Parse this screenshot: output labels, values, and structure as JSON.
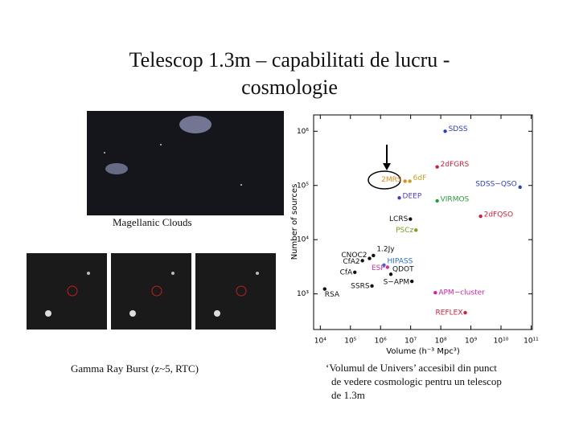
{
  "slide": {
    "title_lines": [
      "Telescop 1.3m – capabilitati de lucru -",
      "cosmologie"
    ],
    "image_captions": [
      "Magellanic Clouds",
      "Gamma Ray Burst  (z~5, RTC)"
    ],
    "chart_caption_lines": [
      "‘Volumul de Univers’ accesibil din punct",
      "de vedere cosmologic pentru un telescop",
      "de 1.3m"
    ]
  },
  "chart_data": {
    "type": "scatter",
    "x_label": "Volume (h⁻³ Mpc³)",
    "y_label": "Number of sources",
    "log_x": true,
    "log_y": true,
    "xlim": [
      6000,
      110000000000
    ],
    "ylim": [
      220,
      2000000
    ],
    "xticks": [
      {
        "value": 10000,
        "label": "10⁴"
      },
      {
        "value": 100000,
        "label": "10⁵"
      },
      {
        "value": 1000000,
        "label": "10⁶"
      },
      {
        "value": 10000000,
        "label": "10⁷"
      },
      {
        "value": 100000000,
        "label": "10⁸"
      },
      {
        "value": 1000000000,
        "label": "10⁹"
      },
      {
        "value": 10000000000,
        "label": "10¹⁰"
      },
      {
        "value": 100000000000,
        "label": "10¹¹"
      }
    ],
    "yticks": [
      {
        "value": 1000,
        "label": "10³"
      },
      {
        "value": 10000,
        "label": "10⁴"
      },
      {
        "value": 100000,
        "label": "10⁵"
      },
      {
        "value": 1000000,
        "label": "10⁶"
      }
    ],
    "points": [
      {
        "label": "SDSS",
        "x": 140000000,
        "y": 1000000,
        "color": "#2a3fbf"
      },
      {
        "label": "2dFGRS",
        "x": 76000000,
        "y": 220000,
        "color": "#d0203a"
      },
      {
        "label": "2MRS",
        "x": 6500000,
        "y": 120000,
        "color": "#e08a20"
      },
      {
        "label": "6dF",
        "x": 9400000,
        "y": 120000,
        "color": "#c8a020"
      },
      {
        "label": "SDSS−QSO",
        "x": 43000000000,
        "y": 93000,
        "color": "#2a3fbf"
      },
      {
        "label": "DEEP",
        "x": 4200000,
        "y": 59000,
        "color": "#5040c0"
      },
      {
        "label": "VIRMOS",
        "x": 76000000,
        "y": 52000,
        "color": "#2a9a3a"
      },
      {
        "label": "2dFQSO",
        "x": 2100000000,
        "y": 27000,
        "color": "#d0203a"
      },
      {
        "label": "LCRS",
        "x": 9800000,
        "y": 24000,
        "color": "#111111"
      },
      {
        "label": "PSCz",
        "x": 15000000,
        "y": 15000,
        "color": "#7aa020"
      },
      {
        "label": "1.2Jy",
        "x": 580000,
        "y": 5100,
        "color": "#111111"
      },
      {
        "label": "CNOC2",
        "x": 430000,
        "y": 4500,
        "color": "#111111"
      },
      {
        "label": "CfA2",
        "x": 250000,
        "y": 4100,
        "color": "#111111"
      },
      {
        "label": "HIPASS",
        "x": 1300000,
        "y": 3400,
        "color": "#2a6fd0"
      },
      {
        "label": "ESP",
        "x": 1700000,
        "y": 3100,
        "color": "#d030a0"
      },
      {
        "label": "CfA",
        "x": 140000,
        "y": 2500,
        "color": "#111111"
      },
      {
        "label": "QDOT",
        "x": 2200000,
        "y": 2300,
        "color": "#111111"
      },
      {
        "label": "SSRS",
        "x": 520000,
        "y": 1400,
        "color": "#111111"
      },
      {
        "label": "RSA",
        "x": 14000,
        "y": 1230,
        "color": "#111111"
      },
      {
        "label": "S−APM",
        "x": 11000000,
        "y": 1700,
        "color": "#111111"
      },
      {
        "label": "APM−cluster",
        "x": 66000000,
        "y": 1050,
        "color": "#d020a0"
      },
      {
        "label": "REFLEX",
        "x": 650000000,
        "y": 450,
        "color": "#d0203a"
      }
    ]
  }
}
